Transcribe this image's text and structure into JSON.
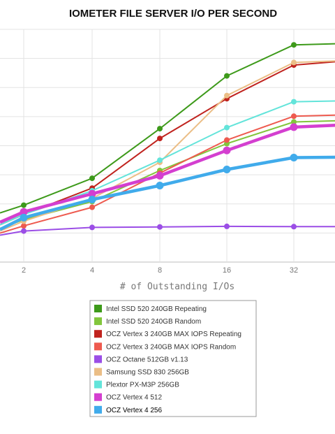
{
  "chart_data": {
    "type": "line",
    "title": "IOMETER FILE SERVER I/O PER SECOND",
    "xlabel": "# of Outstanding I/Os",
    "ylabel": "",
    "x": [
      1,
      2,
      4,
      8,
      16,
      32,
      64
    ],
    "x_tick_labels": [
      "2",
      "4",
      "8",
      "16",
      "32"
    ],
    "ylim": [
      0,
      45000
    ],
    "grid": true,
    "legend_position": "bottom",
    "series": [
      {
        "name": "Intel SSD 520 240GB Repeating",
        "color": "#3d9a1a",
        "values": [
          9500,
          11000,
          16200,
          25800,
          36000,
          42000,
          42300
        ]
      },
      {
        "name": "Intel SSD 520 240GB Random",
        "color": "#82c63c",
        "values": [
          6500,
          8200,
          11700,
          17700,
          22900,
          27100,
          27400
        ]
      },
      {
        "name": "OCZ Vertex 3 240GB MAX IOPS Repeating",
        "color": "#c0231e",
        "values": [
          7200,
          9200,
          14300,
          23900,
          31600,
          38100,
          39000
        ]
      },
      {
        "name": "OCZ Vertex 3 240GB MAX IOPS Random",
        "color": "#ee5a4f",
        "values": [
          5600,
          7000,
          10600,
          17200,
          23600,
          28200,
          28500
        ]
      },
      {
        "name": "OCZ Octane 512GB v1.13",
        "color": "#9b4ee6",
        "values": [
          5200,
          6000,
          6700,
          6800,
          6900,
          6850,
          6850
        ]
      },
      {
        "name": "Samsung SSD 830 256GB",
        "color": "#ebbe86",
        "values": [
          6000,
          7900,
          12300,
          19300,
          32200,
          38600,
          39000
        ]
      },
      {
        "name": "Plextor PX-M3P 256GB",
        "color": "#63e4da",
        "values": [
          7200,
          9200,
          13800,
          19700,
          26000,
          31000,
          31200
        ]
      },
      {
        "name": "OCZ Vertex 4 512",
        "color": "#d43fd0",
        "values": [
          7700,
          9700,
          13200,
          16700,
          21600,
          26100,
          26600
        ]
      },
      {
        "name": "OCZ Vertex 4 256",
        "color": "#40abeb",
        "values": [
          6300,
          8600,
          12100,
          14800,
          17900,
          20200,
          20300
        ]
      }
    ]
  }
}
